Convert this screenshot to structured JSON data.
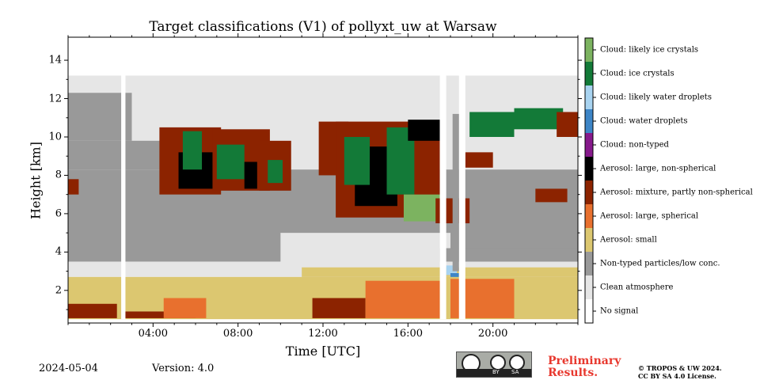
{
  "chart_data": {
    "type": "heatmap",
    "title": "Target classifications (V1) of pollyxt_uw at Warsaw",
    "xlabel": "Time [UTC]",
    "ylabel": "Height [km]",
    "xlim": [
      0,
      24
    ],
    "ylim": [
      0.3,
      15.2
    ],
    "x_ticks": [
      {
        "value": 4,
        "label": "04:00"
      },
      {
        "value": 8,
        "label": "08:00"
      },
      {
        "value": 12,
        "label": "12:00"
      },
      {
        "value": 16,
        "label": "16:00"
      },
      {
        "value": 20,
        "label": "20:00"
      }
    ],
    "y_ticks": [
      {
        "value": 2,
        "label": "2"
      },
      {
        "value": 4,
        "label": "4"
      },
      {
        "value": 6,
        "label": "6"
      },
      {
        "value": 8,
        "label": "8"
      },
      {
        "value": 10,
        "label": "10"
      },
      {
        "value": 12,
        "label": "12"
      },
      {
        "value": 14,
        "label": "14"
      }
    ],
    "classes": [
      {
        "label": "No signal",
        "color": "#ffffff"
      },
      {
        "label": "Clean atmosphere",
        "color": "#e6e6e6"
      },
      {
        "label": "Non-typed particles/low conc.",
        "color": "#999999"
      },
      {
        "label": "Aerosol: small",
        "color": "#dcc770"
      },
      {
        "label": "Aerosol: large, spherical",
        "color": "#e8702e"
      },
      {
        "label": "Aerosol: mixture, partly non-spherical",
        "color": "#8c2300"
      },
      {
        "label": "Aerosol: large, non-spherical",
        "color": "#000000"
      },
      {
        "label": "Cloud: non-typed",
        "color": "#86198b"
      },
      {
        "label": "Cloud: water droplets",
        "color": "#3d85c6"
      },
      {
        "label": "Cloud: likely water droplets",
        "color": "#a8d3f0"
      },
      {
        "label": "Cloud: ice crystals",
        "color": "#137a38"
      },
      {
        "label": "Cloud: likely ice crystals",
        "color": "#7cb360"
      }
    ],
    "regions": [
      {
        "class": 0,
        "t0": 0,
        "t1": 24,
        "h0": 0.5,
        "h1": 15.2
      },
      {
        "class": 1,
        "t0": 0,
        "t1": 24,
        "h0": 8.3,
        "h1": 13.2
      },
      {
        "class": 2,
        "t0": 0,
        "t1": 24,
        "h0": 3.5,
        "h1": 8.3
      },
      {
        "class": 2,
        "t0": 0,
        "t1": 4.5,
        "h0": 8.3,
        "h1": 9.8
      },
      {
        "class": 2,
        "t0": 0,
        "t1": 3,
        "h0": 9.8,
        "h1": 12.3
      },
      {
        "class": 1,
        "t0": 0,
        "t1": 24,
        "h0": 2.7,
        "h1": 3.5
      },
      {
        "class": 1,
        "t0": 10,
        "t1": 18,
        "h0": 3.3,
        "h1": 5.0
      },
      {
        "class": 2,
        "t0": 17.5,
        "t1": 24,
        "h0": 3.5,
        "h1": 4.2
      },
      {
        "class": 3,
        "t0": 0,
        "t1": 24,
        "h0": 0.5,
        "h1": 2.7
      },
      {
        "class": 3,
        "t0": 11,
        "t1": 24,
        "h0": 2.7,
        "h1": 3.2
      },
      {
        "class": 5,
        "t0": 0,
        "t1": 2.3,
        "h0": 0.55,
        "h1": 1.3
      },
      {
        "class": 5,
        "t0": 2.6,
        "t1": 6,
        "h0": 0.55,
        "h1": 0.9
      },
      {
        "class": 4,
        "t0": 4.5,
        "t1": 6.5,
        "h0": 0.55,
        "h1": 1.6
      },
      {
        "class": 5,
        "t0": 11.5,
        "t1": 14,
        "h0": 0.55,
        "h1": 1.6
      },
      {
        "class": 4,
        "t0": 14,
        "t1": 17.5,
        "h0": 0.55,
        "h1": 2.5
      },
      {
        "class": 4,
        "t0": 18,
        "t1": 21,
        "h0": 0.55,
        "h1": 2.6
      },
      {
        "class": 5,
        "t0": 0,
        "t1": 0.5,
        "h0": 7.0,
        "h1": 7.8
      },
      {
        "class": 5,
        "t0": 4.3,
        "t1": 7.2,
        "h0": 7.0,
        "h1": 10.5
      },
      {
        "class": 6,
        "t0": 5.2,
        "t1": 6.8,
        "h0": 7.3,
        "h1": 9.2
      },
      {
        "class": 10,
        "t0": 5.4,
        "t1": 6.3,
        "h0": 8.3,
        "h1": 10.3
      },
      {
        "class": 5,
        "t0": 6.8,
        "t1": 9.5,
        "h0": 7.2,
        "h1": 10.4
      },
      {
        "class": 10,
        "t0": 7.0,
        "t1": 8.3,
        "h0": 7.8,
        "h1": 9.6
      },
      {
        "class": 6,
        "t0": 8.3,
        "t1": 8.9,
        "h0": 7.3,
        "h1": 8.7
      },
      {
        "class": 5,
        "t0": 9.0,
        "t1": 10.5,
        "h0": 7.2,
        "h1": 9.8
      },
      {
        "class": 10,
        "t0": 9.4,
        "t1": 10.1,
        "h0": 7.6,
        "h1": 8.8
      },
      {
        "class": 5,
        "t0": 11.8,
        "t1": 13.2,
        "h0": 8.0,
        "h1": 10.8
      },
      {
        "class": 5,
        "t0": 12.6,
        "t1": 17.5,
        "h0": 5.8,
        "h1": 10.8
      },
      {
        "class": 6,
        "t0": 13.5,
        "t1": 15.5,
        "h0": 6.4,
        "h1": 9.5
      },
      {
        "class": 10,
        "t0": 13.0,
        "t1": 14.2,
        "h0": 7.5,
        "h1": 10.0
      },
      {
        "class": 10,
        "t0": 15.0,
        "t1": 16.3,
        "h0": 7.0,
        "h1": 10.5
      },
      {
        "class": 11,
        "t0": 15.8,
        "t1": 17.5,
        "h0": 5.6,
        "h1": 7.0
      },
      {
        "class": 6,
        "t0": 16.0,
        "t1": 17.5,
        "h0": 9.8,
        "h1": 10.9
      },
      {
        "class": 5,
        "t0": 17.3,
        "t1": 18.9,
        "h0": 5.5,
        "h1": 6.8
      },
      {
        "class": 10,
        "t0": 18.9,
        "t1": 21.0,
        "h0": 10.0,
        "h1": 11.3
      },
      {
        "class": 10,
        "t0": 21.0,
        "t1": 23.3,
        "h0": 10.4,
        "h1": 11.5
      },
      {
        "class": 5,
        "t0": 23.0,
        "t1": 24,
        "h0": 10.0,
        "h1": 11.3
      },
      {
        "class": 5,
        "t0": 18.7,
        "t1": 20.0,
        "h0": 8.4,
        "h1": 9.2
      },
      {
        "class": 5,
        "t0": 22.0,
        "t1": 23.5,
        "h0": 6.6,
        "h1": 7.3
      },
      {
        "class": 9,
        "t0": 17.8,
        "t1": 18.3,
        "h0": 2.8,
        "h1": 3.3
      },
      {
        "class": 8,
        "t0": 18.0,
        "t1": 18.4,
        "h0": 2.7,
        "h1": 2.9
      },
      {
        "class": 0,
        "t0": 2.5,
        "t1": 2.7,
        "h0": 0.5,
        "h1": 15.2
      },
      {
        "class": 0,
        "t0": 17.5,
        "t1": 17.8,
        "h0": 0.5,
        "h1": 15.2
      },
      {
        "class": 0,
        "t0": 18.4,
        "t1": 18.7,
        "h0": 0.5,
        "h1": 15.2
      },
      {
        "class": 2,
        "t0": 18.1,
        "t1": 18.4,
        "h0": 3.0,
        "h1": 11.2
      }
    ]
  },
  "footer": {
    "date": "2024-05-04",
    "version": "Version: 4.0",
    "preliminary_line1": "Preliminary",
    "preliminary_line2": "Results.",
    "copyright_line1": "© TROPOS & UW 2024.",
    "copyright_line2": "CC BY SA 4.0 License.",
    "license_badge": {
      "by": "BY",
      "sa": "SA",
      "icons": [
        "cc-icon",
        "attribution-icon",
        "share-alike-icon"
      ]
    }
  }
}
